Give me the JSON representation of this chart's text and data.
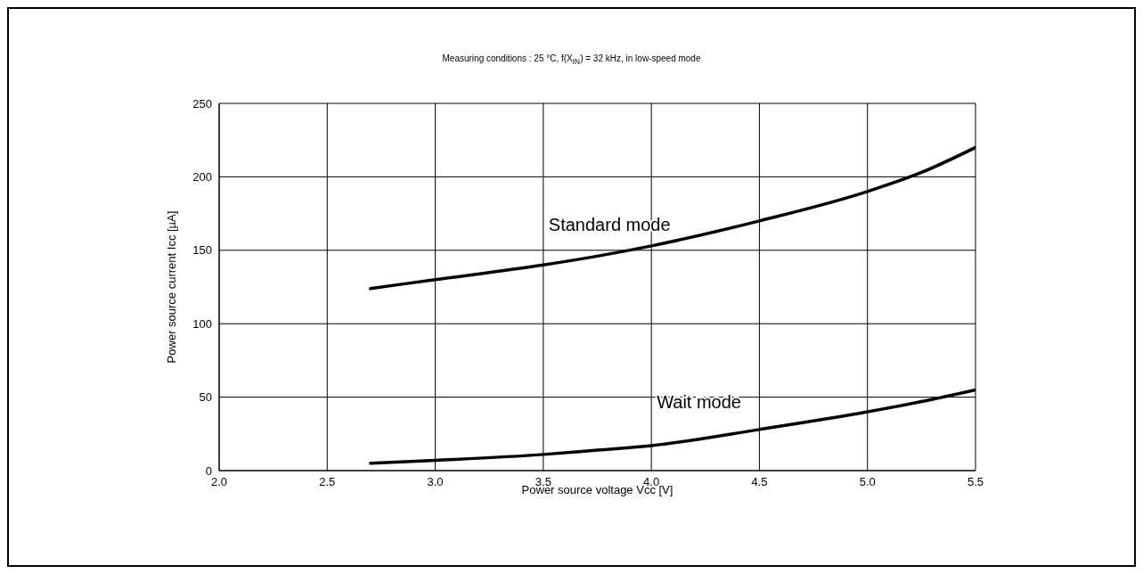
{
  "chart_data": {
    "type": "line",
    "title": "Measuring conditions : 25 °C, f(X$_{IN}$) = 32 kHz, in low-speed mode",
    "xlabel": "Power source voltage Vcc [V]",
    "ylabel": "Power source current Icc [µA]",
    "x": [
      2.7,
      3.0,
      3.5,
      3.75,
      4.0,
      4.5,
      5.0,
      5.25,
      5.5
    ],
    "series": [
      {
        "name": "Standard mode",
        "color": "#000000",
        "values": [
          124,
          130,
          140,
          146,
          153,
          170,
          190,
          203,
          220
        ]
      },
      {
        "name": "Wait mode",
        "color": "#000000",
        "values": [
          5,
          7,
          11,
          14,
          17,
          28,
          40,
          47,
          55
        ]
      }
    ],
    "xlim": [
      2.0,
      5.5
    ],
    "xticks": [
      {
        "value": 2,
        "label": "2.0"
      },
      {
        "value": 2.5,
        "label": "2.5"
      },
      {
        "value": 3,
        "label": "3.0"
      },
      {
        "value": 3.5,
        "label": "3.5"
      },
      {
        "value": 4,
        "label": "4.0"
      },
      {
        "value": 4.5,
        "label": "4.5"
      },
      {
        "value": 5,
        "label": "5.0"
      },
      {
        "value": 5.5,
        "label": "5.5"
      }
    ],
    "ylim": [
      0,
      250
    ],
    "yticks": [
      0,
      50,
      100,
      150,
      200,
      250
    ],
    "grid": true,
    "marker": "none",
    "line_style": "solid"
  }
}
